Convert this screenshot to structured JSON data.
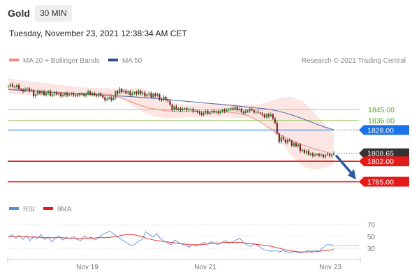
{
  "header": {
    "symbol": "Gold",
    "timeframe": "30 MIN",
    "datetime": "Tuesday, November 23, 2021 12:38:34 AM CET"
  },
  "legend": {
    "ma20_label": "MA 20 + Bollinger Bands",
    "ma50_label": "MA 50",
    "credit": "Research © 2021 Trading Central",
    "rsi_label": "RSI",
    "ma9_label": "9MA"
  },
  "colors": {
    "up_candle": "#2e7d32",
    "down_candle": "#7a1f1f",
    "ma20_bollinger": "#f28b82",
    "ma50": "#4a63a8",
    "resistance_green": "#8bc34a",
    "resistance_blue": "#1a73e8",
    "support_red": "#e31b1b",
    "current_price": "#333333",
    "forecast_arrow": "#2a5aa0",
    "rsi": "#5b8dd9",
    "ma9": "#e53935"
  },
  "chart_data": [
    {
      "type": "candlestick",
      "x_labels": [
        "Nov 19",
        "Nov 21",
        "Nov 23"
      ],
      "y_range": [
        1772,
        1878
      ],
      "current_price": 1808.65,
      "levels": [
        {
          "value": 1845.0,
          "label": "1845.00",
          "kind": "resistance"
        },
        {
          "value": 1836.0,
          "label": "1836.00",
          "kind": "resistance"
        },
        {
          "value": 1828.0,
          "label": "1828.00",
          "kind": "pivot"
        },
        {
          "value": 1808.65,
          "label": "1808.65",
          "kind": "last"
        },
        {
          "value": 1802.0,
          "label": "1802.00",
          "kind": "support"
        },
        {
          "value": 1785.0,
          "label": "1785.00",
          "kind": "target"
        }
      ],
      "forecast": {
        "from": 1808.65,
        "to": 1785.0,
        "direction": "down"
      },
      "close": [
        1864.5,
        1865.8,
        1864.0,
        1863.5,
        1865.2,
        1862.0,
        1861.5,
        1860.0,
        1861.8,
        1862.5,
        1860.5,
        1861.0,
        1856.0,
        1857.5,
        1860.2,
        1858.5,
        1859.8,
        1857.0,
        1858.8,
        1860.0,
        1856.5,
        1857.5,
        1859.0,
        1857.5,
        1858.2,
        1856.0,
        1857.0,
        1858.5,
        1856.8,
        1857.5,
        1858.5,
        1857.0,
        1856.2,
        1858.0,
        1857.2,
        1857.8,
        1856.5,
        1858.0,
        1860.0,
        1857.5,
        1858.2,
        1857.0,
        1856.5,
        1858.0,
        1856.5,
        1855.0,
        1852.8,
        1854.0,
        1855.0,
        1853.0,
        1854.5,
        1860.0,
        1858.5,
        1862.0,
        1859.5,
        1860.5,
        1858.5,
        1860.0,
        1857.0,
        1858.5,
        1859.5,
        1858.0,
        1860.5,
        1858.0,
        1859.0,
        1856.0,
        1857.5,
        1858.5,
        1855.0,
        1858.0,
        1856.5,
        1857.5,
        1853.5,
        1853.0,
        1855.5,
        1853.0,
        1852.0,
        1849.0,
        1844.5,
        1847.5,
        1845.0,
        1846.0,
        1844.5,
        1845.5,
        1846.0,
        1844.5,
        1845.0,
        1845.5,
        1843.5,
        1844.0,
        1843.0,
        1841.8,
        1840.5,
        1842.5,
        1843.5,
        1841.5,
        1842.5,
        1843.8,
        1842.5,
        1843.5,
        1842.0,
        1843.5,
        1844.8,
        1843.5,
        1844.5,
        1845.2,
        1846.0,
        1845.0,
        1847.0,
        1844.5,
        1845.5,
        1843.0,
        1842.0,
        1844.0,
        1843.5,
        1845.5,
        1844.5,
        1842.5,
        1843.0,
        1842.5,
        1841.8,
        1840.5,
        1838.5,
        1841.0,
        1839.5,
        1841.0,
        1837.5,
        1834.0,
        1825.0,
        1818.0,
        1822.0,
        1820.0,
        1817.5,
        1819.5,
        1819.0,
        1815.0,
        1817.0,
        1814.5,
        1816.0,
        1810.5,
        1811.5,
        1809.0,
        1810.5,
        1807.5,
        1808.5,
        1806.5,
        1807.5,
        1808.0,
        1806.8,
        1807.5,
        1805.5,
        1807.2,
        1808.0,
        1806.5,
        1807.5,
        1808.65
      ],
      "ma20": [
        1862.0,
        1861.5,
        1861.0,
        1860.5,
        1860.0,
        1859.5,
        1859.0,
        1858.5,
        1858.5,
        1858.5,
        1858.0,
        1857.5,
        1855.0,
        1852.0,
        1849.0,
        1846.5,
        1845.0,
        1844.0,
        1843.5,
        1843.5,
        1843.5,
        1843.5,
        1843.5,
        1843.0,
        1842.5,
        1841.5,
        1839.5,
        1835.0,
        1830.0,
        1825.0,
        1821.0,
        1817.5,
        1814.5,
        1812.0,
        1810.0,
        1808.0
      ],
      "ma50": [
        1861.5,
        1861.0,
        1860.5,
        1860.0,
        1859.5,
        1859.0,
        1858.6,
        1858.2,
        1857.8,
        1857.4,
        1857.0,
        1856.5,
        1856.0,
        1855.5,
        1855.0,
        1854.3,
        1853.6,
        1852.9,
        1852.2,
        1851.5,
        1850.8,
        1850.1,
        1849.4,
        1848.7,
        1847.9,
        1847.0,
        1846.2,
        1845.4,
        1844.0,
        1842.0,
        1839.5,
        1836.5,
        1833.5,
        1830.5,
        1828.2
      ],
      "bb_upper": [
        1871.0,
        1869.5,
        1868.5,
        1867.5,
        1866.5,
        1865.5,
        1864.5,
        1863.5,
        1863.0,
        1863.0,
        1862.5,
        1862.0,
        1863.0,
        1862.0,
        1858.5,
        1853.0,
        1850.0,
        1849.0,
        1849.5,
        1850.0,
        1850.0,
        1849.5,
        1849.0,
        1849.0,
        1849.5,
        1852.0,
        1855.0,
        1855.5,
        1852.0,
        1844.0,
        1834.0,
        1824.0
      ],
      "bb_lower": [
        1858.0,
        1857.5,
        1857.0,
        1856.5,
        1856.0,
        1855.5,
        1855.5,
        1856.0,
        1855.5,
        1855.0,
        1854.5,
        1853.0,
        1847.0,
        1842.0,
        1839.0,
        1838.0,
        1838.0,
        1838.5,
        1838.5,
        1838.5,
        1838.5,
        1838.5,
        1838.0,
        1837.0,
        1835.0,
        1829.0,
        1818.0,
        1806.0,
        1798.0,
        1795.0,
        1796.0,
        1799.0
      ]
    },
    {
      "type": "line",
      "title": "RSI",
      "y_ticks": [
        70,
        50,
        30
      ],
      "y_range": [
        10,
        80
      ],
      "series": [
        {
          "name": "RSI",
          "values": [
            49,
            53,
            47,
            52,
            45,
            51,
            43,
            50,
            46,
            53,
            45,
            49,
            41,
            47,
            51,
            44,
            49,
            46,
            50,
            45,
            43,
            51,
            47,
            49,
            44,
            48,
            53,
            56,
            59,
            55,
            50,
            46,
            42,
            38,
            34,
            37,
            42,
            45,
            58,
            53,
            49,
            55,
            47,
            42,
            39,
            36,
            44,
            40,
            37,
            35,
            32,
            36,
            34,
            37,
            40,
            37,
            41,
            39,
            36,
            40,
            43,
            39,
            41,
            44,
            47,
            40,
            36,
            33,
            38,
            35,
            30,
            27,
            26,
            25,
            27,
            24,
            26,
            24,
            22,
            25,
            23,
            22,
            24,
            26,
            25,
            27,
            25,
            31,
            36,
            36,
            35
          ]
        },
        {
          "name": "9MA",
          "values": [
            49,
            50,
            50,
            50,
            49,
            49,
            49,
            48,
            48,
            48,
            48,
            48,
            47,
            47,
            47,
            47,
            47,
            47,
            48,
            48,
            48,
            49,
            50,
            52,
            53,
            53,
            52,
            50,
            47,
            45,
            43,
            42,
            41,
            40,
            39,
            38,
            37,
            36,
            36,
            36,
            37,
            38,
            39,
            39,
            40,
            40,
            40,
            40,
            39,
            38,
            37,
            36,
            35,
            34,
            32,
            30,
            28,
            26,
            25,
            24,
            24,
            24,
            24,
            25,
            26,
            27,
            28
          ]
        }
      ]
    }
  ]
}
